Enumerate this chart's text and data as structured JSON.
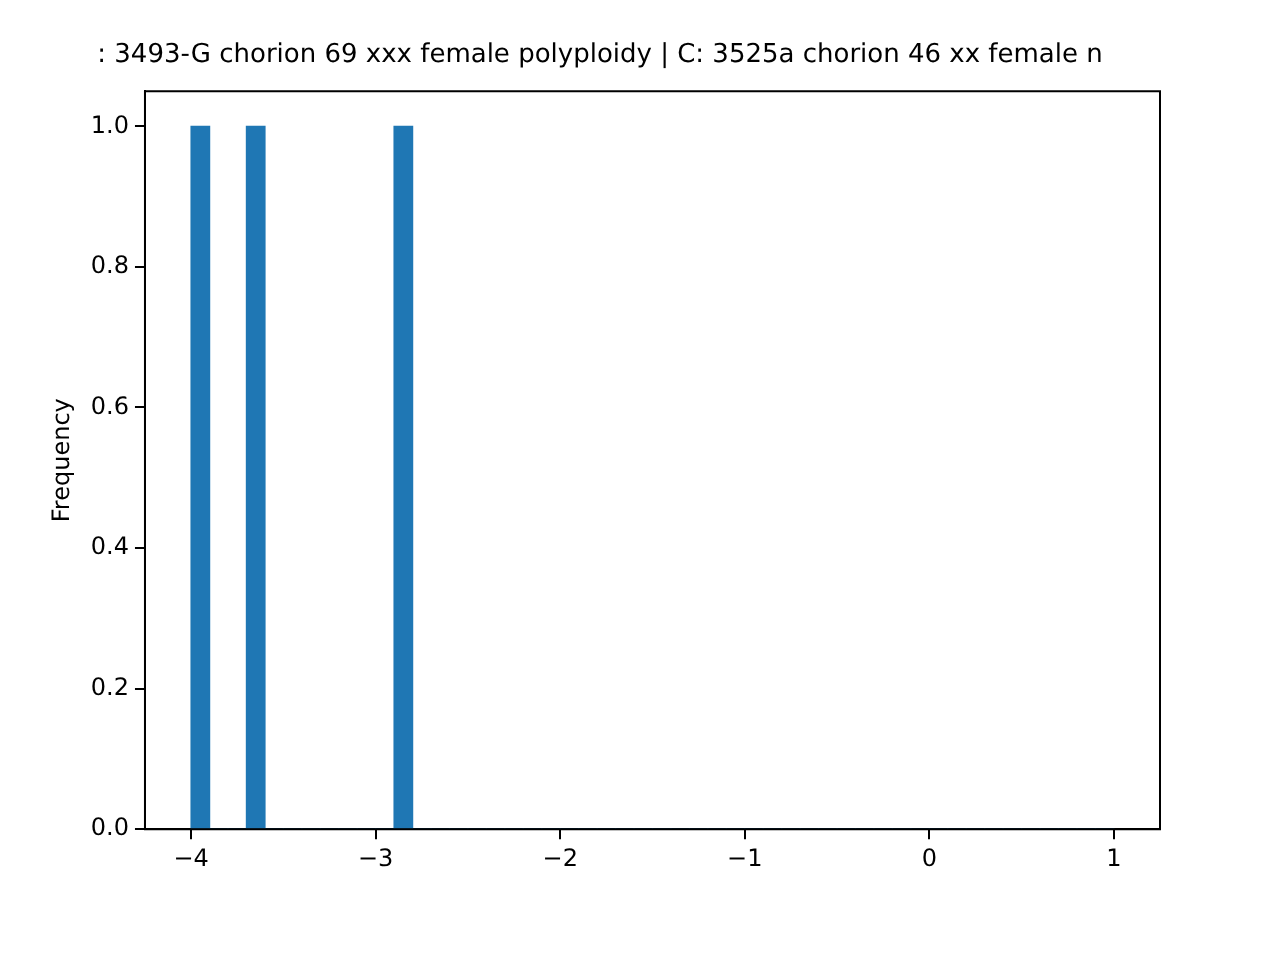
{
  "chart_data": {
    "type": "histogram",
    "title": ": 3493-G chorion 69 xxx female polyploidy | C: 3525a chorion 46 xx female n",
    "ylabel": "Frequency",
    "color": "#1f77b4",
    "bins": [
      -4,
      -3.9,
      -3.8,
      -3.7,
      -3.6,
      -3.5,
      -3.4,
      -3.3,
      -3.2,
      -3.1,
      -3,
      -2.9,
      -2.8,
      -2.7,
      -2.6,
      -2.5,
      -2.4,
      -2.3,
      -2.2,
      -2.1,
      -2,
      -1.9,
      -1.8,
      -1.7,
      -1.6,
      -1.5,
      -1.4,
      -1.3,
      -1.2,
      -1.1,
      -1,
      -0.9,
      -0.8,
      -0.7,
      -0.6,
      -0.5,
      -0.4,
      -0.3,
      -0.2,
      -0.1,
      0,
      0.1,
      0.2,
      0.3,
      0.4,
      0.5,
      0.6,
      0.7,
      0.8,
      0.9,
      1
    ],
    "values": [
      1,
      0,
      0,
      1,
      0,
      0,
      0,
      0,
      0,
      0,
      0,
      1,
      0,
      0,
      0,
      0,
      0,
      0,
      0,
      0,
      0,
      0,
      0,
      0,
      0,
      0,
      0,
      0,
      0,
      0,
      0,
      0,
      0,
      0,
      0,
      0,
      0,
      0,
      0,
      0,
      0,
      0,
      0,
      0,
      0,
      0,
      0,
      0,
      0,
      0
    ],
    "xlim": [
      -4.25,
      1.25
    ],
    "xticks": [
      {
        "value": -4,
        "label": "−4"
      },
      {
        "value": -3,
        "label": "−3"
      },
      {
        "value": -2,
        "label": "−2"
      },
      {
        "value": -1,
        "label": "−1"
      },
      0,
      1
    ],
    "ylim": [
      0,
      1.05
    ],
    "yticks": [
      {
        "value": 0,
        "label": "0.0"
      },
      {
        "value": 0.2,
        "label": "0.2"
      },
      {
        "value": 0.4,
        "label": "0.4"
      },
      {
        "value": 0.6,
        "label": "0.6"
      },
      {
        "value": 0.8,
        "label": "0.8"
      },
      {
        "value": 1,
        "label": "1.0"
      }
    ]
  }
}
